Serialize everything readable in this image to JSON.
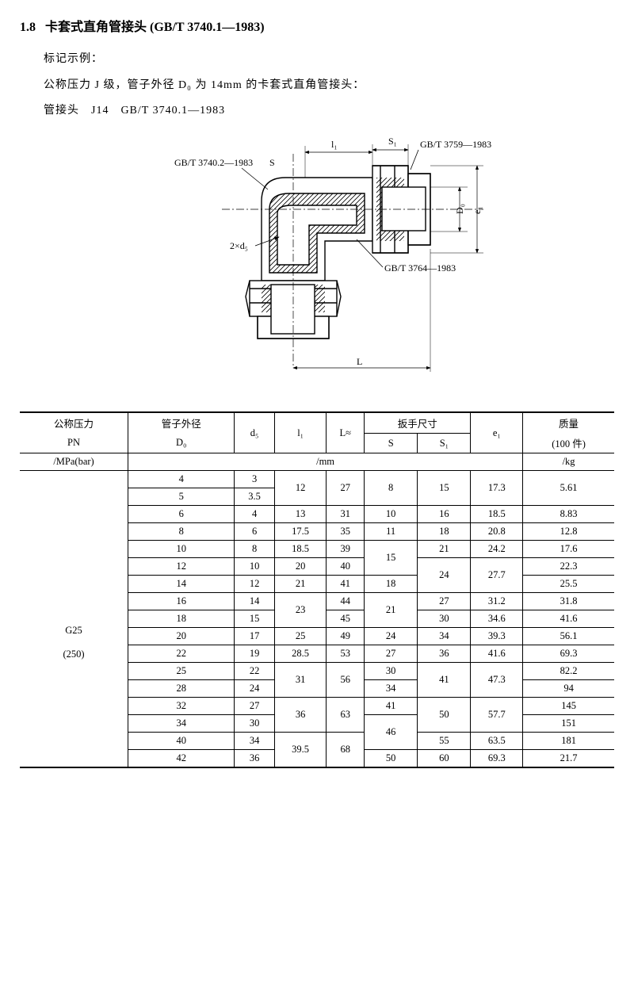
{
  "heading": {
    "number": "1.8",
    "title": "卡套式直角管接头",
    "std": "(GB/T 3740.1—1983)"
  },
  "example": {
    "label": "标记示例：",
    "line1": "公称压力 J 级，管子外径 D₀ 为 14mm 的卡套式直角管接头：",
    "line2": "管接头　J14　GB/T 3740.1—1983"
  },
  "diagram": {
    "labels": {
      "top_left": "GB/T 3740.2—1983",
      "top_right": "GB/T 3759—1983",
      "right_mid": "GB/T 3764—1983",
      "S": "S",
      "S1": "S₁",
      "l1": "l₁",
      "D0": "D₀",
      "e1": "e₁",
      "L": "L",
      "d5": "2×d₅"
    }
  },
  "table": {
    "headers": {
      "pn1": "公称压力",
      "pn2": "PN",
      "pn3": "/MPa(bar)",
      "dc1": "管子外径",
      "dc2": "D₀",
      "d5": "d₅",
      "l1": "l₁",
      "L": "L≈",
      "wrench": "扳手尺寸",
      "S": "S",
      "S1": "S₁",
      "e1": "e₁",
      "mass1": "质量",
      "mass2": "(100 件)",
      "mass3": "/kg",
      "unit": "/mm"
    },
    "pn": "G25\n(250)",
    "rows": [
      {
        "dc": "4",
        "d5": "3",
        "l1": "12",
        "L": "27",
        "S": "8",
        "S1": "15",
        "e1": "17.3",
        "m": "5.61",
        "l1_span": 2,
        "L_span": 2,
        "S_span": 2,
        "S1_span": 2,
        "e1_span": 2,
        "m_span": 2
      },
      {
        "dc": "5",
        "d5": "3.5"
      },
      {
        "dc": "6",
        "d5": "4",
        "l1": "13",
        "L": "31",
        "S": "10",
        "S1": "16",
        "e1": "18.5",
        "m": "8.83"
      },
      {
        "dc": "8",
        "d5": "6",
        "l1": "17.5",
        "L": "35",
        "S": "11",
        "S1": "18",
        "e1": "20.8",
        "m": "12.8"
      },
      {
        "dc": "10",
        "d5": "8",
        "l1": "18.5",
        "L": "39",
        "S": "15",
        "S1": "21",
        "e1": "24.2",
        "m": "17.6",
        "S_span": 2
      },
      {
        "dc": "12",
        "d5": "10",
        "l1": "20",
        "L": "40",
        "S1": "24",
        "e1": "27.7",
        "m": "22.3",
        "S1_span": 2,
        "e1_span": 2
      },
      {
        "dc": "14",
        "d5": "12",
        "l1": "21",
        "L": "41",
        "S": "18",
        "m": "25.5"
      },
      {
        "dc": "16",
        "d5": "14",
        "l1": "23",
        "L": "44",
        "S": "21",
        "S1": "27",
        "e1": "31.2",
        "m": "31.8",
        "l1_span": 2,
        "S_span": 2
      },
      {
        "dc": "18",
        "d5": "15",
        "L": "45",
        "S1": "30",
        "e1": "34.6",
        "m": "41.6"
      },
      {
        "dc": "20",
        "d5": "17",
        "l1": "25",
        "L": "49",
        "S": "24",
        "S1": "34",
        "e1": "39.3",
        "m": "56.1"
      },
      {
        "dc": "22",
        "d5": "19",
        "l1": "28.5",
        "L": "53",
        "S": "27",
        "S1": "36",
        "e1": "41.6",
        "m": "69.3"
      },
      {
        "dc": "25",
        "d5": "22",
        "l1": "31",
        "L": "56",
        "S": "30",
        "S1": "41",
        "e1": "47.3",
        "m": "82.2",
        "l1_span": 2,
        "L_span": 2,
        "S1_span": 2,
        "e1_span": 2
      },
      {
        "dc": "28",
        "d5": "24",
        "S": "34",
        "m": "94"
      },
      {
        "dc": "32",
        "d5": "27",
        "l1": "36",
        "L": "63",
        "S": "41",
        "S1": "50",
        "e1": "57.7",
        "m": "145",
        "l1_span": 2,
        "L_span": 2,
        "S1_span": 2,
        "e1_span": 2
      },
      {
        "dc": "34",
        "d5": "30",
        "S": "46",
        "m": "151",
        "S_span": 2
      },
      {
        "dc": "40",
        "d5": "34",
        "l1": "39.5",
        "L": "68",
        "S1": "55",
        "e1": "63.5",
        "m": "181",
        "l1_span": 2,
        "L_span": 2
      },
      {
        "dc": "42",
        "d5": "36",
        "S": "50",
        "S1": "60",
        "e1": "69.3",
        "m": "21.7"
      }
    ]
  }
}
